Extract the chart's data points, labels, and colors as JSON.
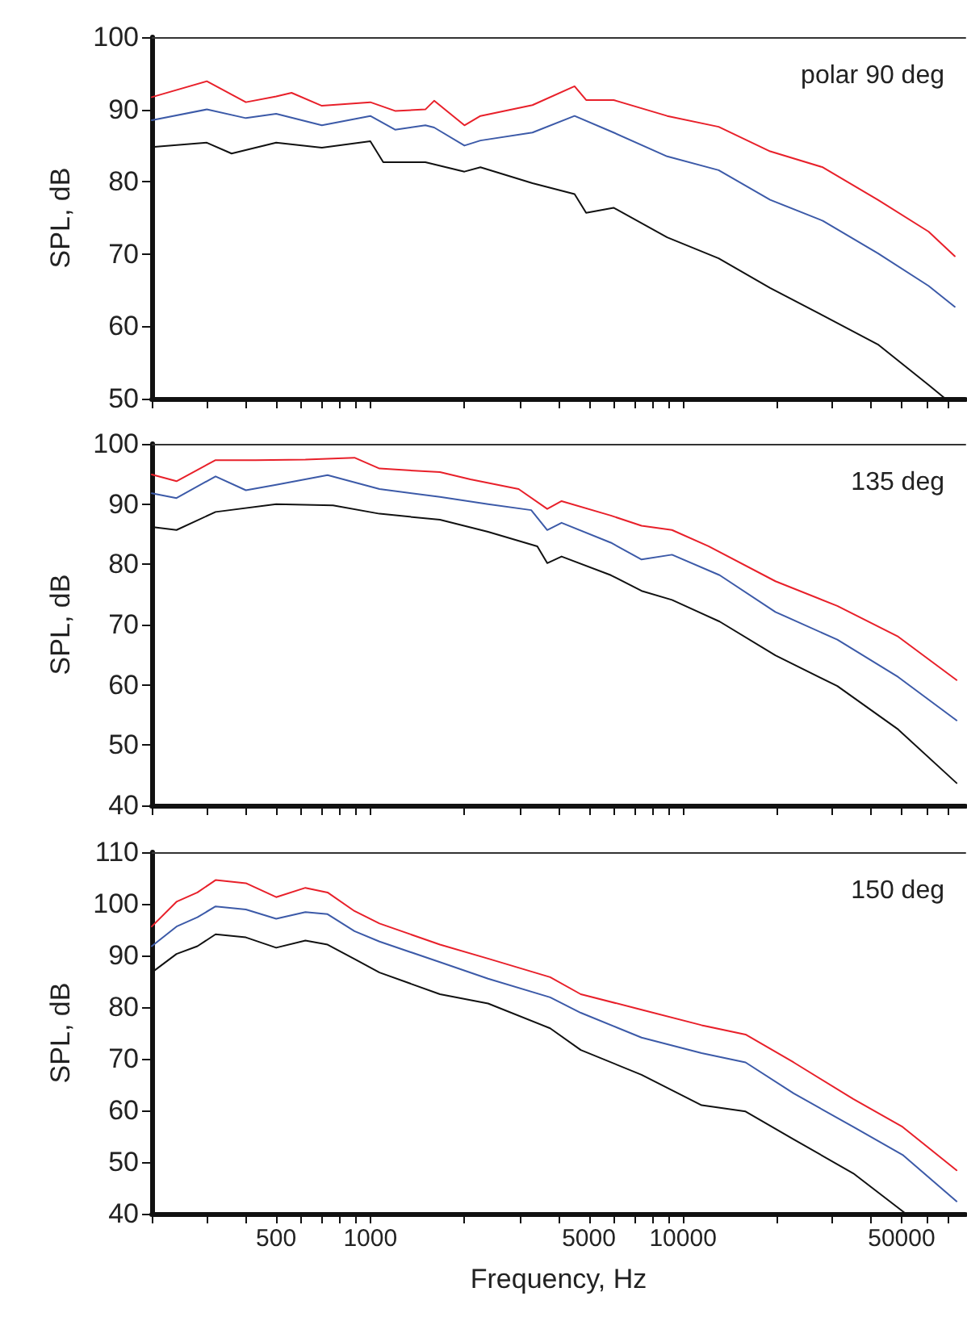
{
  "chart_data": [
    {
      "type": "line",
      "ylabel": "SPL, dB",
      "annotations": [
        "polar 90 deg"
      ],
      "log": "x",
      "xlim": [
        200,
        80000
      ],
      "ylim": [
        50,
        100
      ],
      "yticks": [
        50,
        60,
        70,
        80,
        90,
        100
      ],
      "tick_labels": "y",
      "marker": "none",
      "line_style": "solid",
      "xticks": [
        {
          "value": 200,
          "label": null
        },
        {
          "value": 300,
          "label": null
        },
        {
          "value": 400,
          "label": null
        },
        {
          "value": 500,
          "label": null
        },
        {
          "value": 600,
          "label": null
        },
        {
          "value": 700,
          "label": null
        },
        {
          "value": 800,
          "label": null
        },
        {
          "value": 900,
          "label": null
        },
        {
          "value": 1000,
          "label": null
        },
        {
          "value": 2000,
          "label": null
        },
        {
          "value": 3000,
          "label": null
        },
        {
          "value": 4000,
          "label": null
        },
        {
          "value": 5000,
          "label": null
        },
        {
          "value": 6000,
          "label": null
        },
        {
          "value": 7000,
          "label": null
        },
        {
          "value": 8000,
          "label": null
        },
        {
          "value": 9000,
          "label": null
        },
        {
          "value": 10000,
          "label": null
        },
        {
          "value": 20000,
          "label": null
        },
        {
          "value": 30000,
          "label": null
        },
        {
          "value": 40000,
          "label": null
        },
        {
          "value": 50000,
          "label": null
        },
        {
          "value": 60000,
          "label": null
        },
        {
          "value": 70000,
          "label": null
        }
      ],
      "series": [
        {
          "color": "#e8202a",
          "x": [
            200,
            300,
            400,
            500,
            560,
            700,
            1000,
            1200,
            1500,
            1600,
            2000,
            2250,
            3300,
            4500,
            4900,
            6000,
            8900,
            13000,
            19000,
            28000,
            42000,
            61000,
            74000
          ],
          "values": [
            91.7,
            93.9,
            91,
            91.8,
            92.3,
            90.5,
            91,
            89.8,
            90,
            91.2,
            87.8,
            89.1,
            90.6,
            93.2,
            91.3,
            91.3,
            89.1,
            87.6,
            84.2,
            82,
            77.5,
            73.1,
            69.7
          ]
        },
        {
          "color": "#3c5aa8",
          "x": [
            200,
            300,
            400,
            500,
            700,
            1000,
            1200,
            1500,
            1600,
            2000,
            2250,
            3300,
            4500,
            6000,
            8900,
            13000,
            19000,
            28000,
            42000,
            61000,
            74000
          ],
          "values": [
            88.5,
            90,
            88.8,
            89.4,
            87.8,
            89.1,
            87.2,
            87.8,
            87.5,
            85,
            85.7,
            86.8,
            89.1,
            86.8,
            83.5,
            81.6,
            77.5,
            74.6,
            70.1,
            65.6,
            62.7
          ]
        },
        {
          "color": "#111111",
          "x": [
            200,
            300,
            360,
            500,
            700,
            1000,
            1100,
            1500,
            2000,
            2250,
            3300,
            4500,
            4900,
            6000,
            8900,
            13000,
            19000,
            28000,
            42000,
            61000,
            69000
          ],
          "values": [
            84.8,
            85.4,
            83.9,
            85.4,
            84.7,
            85.6,
            82.7,
            82.7,
            81.4,
            82,
            79.8,
            78.3,
            75.7,
            76.4,
            72.3,
            69.4,
            65.3,
            61.5,
            57.5,
            51.9,
            50
          ]
        }
      ]
    },
    {
      "type": "line",
      "ylabel": "SPL, dB",
      "annotations": [
        "135 deg"
      ],
      "log": "x",
      "xlim": [
        200,
        80000
      ],
      "ylim": [
        40,
        100
      ],
      "yticks": [
        40,
        50,
        60,
        70,
        80,
        90,
        100
      ],
      "tick_labels": "y",
      "marker": "none",
      "line_style": "solid",
      "xticks": [
        {
          "value": 200,
          "label": null
        },
        {
          "value": 300,
          "label": null
        },
        {
          "value": 400,
          "label": null
        },
        {
          "value": 500,
          "label": null
        },
        {
          "value": 600,
          "label": null
        },
        {
          "value": 700,
          "label": null
        },
        {
          "value": 800,
          "label": null
        },
        {
          "value": 900,
          "label": null
        },
        {
          "value": 1000,
          "label": null
        },
        {
          "value": 2000,
          "label": null
        },
        {
          "value": 3000,
          "label": null
        },
        {
          "value": 4000,
          "label": null
        },
        {
          "value": 5000,
          "label": null
        },
        {
          "value": 6000,
          "label": null
        },
        {
          "value": 7000,
          "label": null
        },
        {
          "value": 8000,
          "label": null
        },
        {
          "value": 9000,
          "label": null
        },
        {
          "value": 10000,
          "label": null
        },
        {
          "value": 20000,
          "label": null
        },
        {
          "value": 30000,
          "label": null
        },
        {
          "value": 40000,
          "label": null
        },
        {
          "value": 50000,
          "label": null
        },
        {
          "value": 60000,
          "label": null
        },
        {
          "value": 70000,
          "label": null
        }
      ],
      "series": [
        {
          "color": "#e8202a",
          "x": [
            200,
            240,
            320,
            430,
            620,
            890,
            1070,
            1670,
            2090,
            2980,
            3680,
            4090,
            5880,
            7370,
            9220,
            12070,
            19750,
            31160,
            48780,
            75000
          ],
          "values": [
            94.9,
            93.8,
            97.3,
            97.3,
            97.4,
            97.7,
            95.9,
            95.3,
            94.1,
            92.5,
            89.2,
            90.5,
            88.1,
            86.4,
            85.7,
            83,
            77.2,
            73.1,
            68,
            60.8
          ]
        },
        {
          "color": "#3c5aa8",
          "x": [
            200,
            240,
            320,
            400,
            500,
            730,
            1070,
            1670,
            2380,
            3270,
            3680,
            4090,
            5880,
            7370,
            9220,
            13100,
            19750,
            31160,
            48780,
            75000
          ],
          "values": [
            91.8,
            91,
            94.6,
            92.3,
            93.2,
            94.8,
            92.5,
            91.2,
            90,
            89,
            85.7,
            86.9,
            83.6,
            80.8,
            81.6,
            78.2,
            72.1,
            67.5,
            61.3,
            54.1
          ]
        },
        {
          "color": "#111111",
          "x": [
            200,
            240,
            320,
            500,
            760,
            1070,
            1670,
            2380,
            3420,
            3680,
            4090,
            5880,
            7370,
            9220,
            13100,
            19750,
            31160,
            48780,
            75000
          ],
          "values": [
            86.2,
            85.7,
            88.7,
            90,
            89.8,
            88.4,
            87.4,
            85.4,
            83,
            80.2,
            81.3,
            78.2,
            75.6,
            74.1,
            70.5,
            64.9,
            59.8,
            52.6,
            43.7
          ]
        }
      ]
    },
    {
      "type": "line",
      "xlabel": "Frequency, Hz",
      "ylabel": "SPL, dB",
      "annotations": [
        "150 deg"
      ],
      "xlim": [
        200,
        80000
      ],
      "log": "x",
      "ylim": [
        40,
        110
      ],
      "yticks": [
        40,
        50,
        60,
        70,
        80,
        90,
        100,
        110
      ],
      "marker": "none",
      "line_style": "solid",
      "xticks": [
        {
          "value": 200,
          "label": null
        },
        {
          "value": 300,
          "label": null
        },
        {
          "value": 400,
          "label": null
        },
        {
          "value": 500,
          "label": "500"
        },
        {
          "value": 600,
          "label": null
        },
        {
          "value": 700,
          "label": null
        },
        {
          "value": 800,
          "label": null
        },
        {
          "value": 900,
          "label": null
        },
        {
          "value": 1000,
          "label": "1000"
        },
        {
          "value": 2000,
          "label": null
        },
        {
          "value": 3000,
          "label": null
        },
        {
          "value": 4000,
          "label": null
        },
        {
          "value": 5000,
          "label": "5000"
        },
        {
          "value": 6000,
          "label": null
        },
        {
          "value": 7000,
          "label": null
        },
        {
          "value": 8000,
          "label": null
        },
        {
          "value": 9000,
          "label": null
        },
        {
          "value": 10000,
          "label": "10000"
        },
        {
          "value": 20000,
          "label": null
        },
        {
          "value": 30000,
          "label": null
        },
        {
          "value": 40000,
          "label": null
        },
        {
          "value": 50000,
          "label": "50000"
        },
        {
          "value": 60000,
          "label": null
        },
        {
          "value": 70000,
          "label": null
        }
      ],
      "series": [
        {
          "color": "#e8202a",
          "x": [
            200,
            240,
            280,
            320,
            400,
            500,
            620,
            730,
            890,
            1070,
            1670,
            2380,
            3760,
            4710,
            7370,
            11470,
            15850,
            22590,
            35050,
            50380,
            75000
          ],
          "values": [
            95.6,
            100.4,
            102.2,
            104.6,
            104,
            101.3,
            103.1,
            102.2,
            98.6,
            96.2,
            92.1,
            89.4,
            85.8,
            82.5,
            79.5,
            76.5,
            74.7,
            69.3,
            62.2,
            56.8,
            48.4
          ]
        },
        {
          "color": "#3c5aa8",
          "x": [
            200,
            240,
            280,
            320,
            400,
            500,
            620,
            730,
            890,
            1070,
            1670,
            2380,
            3760,
            4710,
            7370,
            11470,
            15850,
            22590,
            35050,
            50380,
            75000
          ],
          "values": [
            91.8,
            95.6,
            97.4,
            99.5,
            98.9,
            97.1,
            98.4,
            98,
            94.7,
            92.7,
            88.7,
            85.5,
            81.9,
            78.9,
            74.1,
            71.1,
            69.3,
            63.3,
            56.8,
            51.4,
            42.4
          ]
        },
        {
          "color": "#111111",
          "x": [
            200,
            240,
            280,
            320,
            400,
            500,
            620,
            730,
            890,
            1070,
            1670,
            2380,
            3760,
            4710,
            7370,
            11470,
            15850,
            22590,
            35050,
            51590
          ],
          "values": [
            86.7,
            90.3,
            91.8,
            94.1,
            93.5,
            91.5,
            92.9,
            92.1,
            89.3,
            86.7,
            82.5,
            80.7,
            75.9,
            71.7,
            66.9,
            61,
            59.8,
            54.4,
            47.8,
            40
          ]
        }
      ]
    }
  ]
}
